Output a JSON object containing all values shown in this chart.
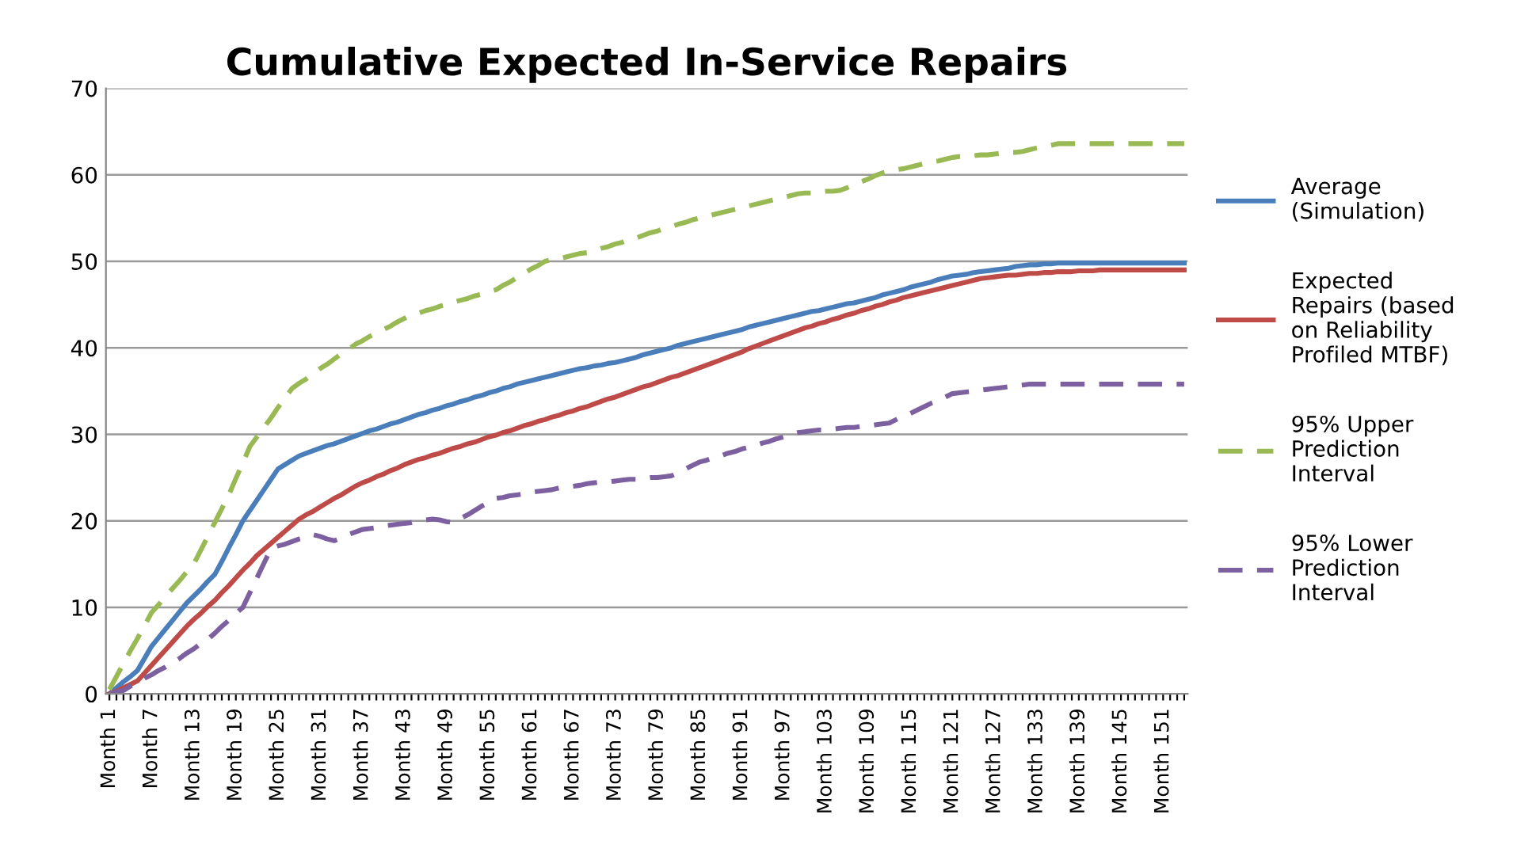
{
  "chart_data": {
    "type": "line",
    "title": "Cumulative Expected In-Service Repairs",
    "categories": [
      "Month 1",
      null,
      null,
      null,
      null,
      null,
      "Month 7",
      null,
      null,
      null,
      null,
      null,
      "Month 13",
      null,
      null,
      null,
      null,
      null,
      "Month 19",
      null,
      null,
      null,
      null,
      null,
      "Month 25",
      null,
      null,
      null,
      null,
      null,
      "Month 31",
      null,
      null,
      null,
      null,
      null,
      "Month 37",
      null,
      null,
      null,
      null,
      null,
      "Month 43",
      null,
      null,
      null,
      null,
      null,
      "Month 49",
      null,
      null,
      null,
      null,
      null,
      "Month 55",
      null,
      null,
      null,
      null,
      null,
      "Month 61",
      null,
      null,
      null,
      null,
      null,
      "Month 67",
      null,
      null,
      null,
      null,
      null,
      "Month 73",
      null,
      null,
      null,
      null,
      null,
      "Month 79",
      null,
      null,
      null,
      null,
      null,
      "Month 85",
      null,
      null,
      null,
      null,
      null,
      "Month 91",
      null,
      null,
      null,
      null,
      null,
      "Month 97",
      null,
      null,
      null,
      null,
      null,
      "Month 103",
      null,
      null,
      null,
      null,
      null,
      "Month 109",
      null,
      null,
      null,
      null,
      null,
      "Month 115",
      null,
      null,
      null,
      null,
      null,
      "Month 121",
      null,
      null,
      null,
      null,
      null,
      "Month 127",
      null,
      null,
      null,
      null,
      null,
      "Month 133",
      null,
      null,
      null,
      null,
      null,
      "Month 139",
      null,
      null,
      null,
      null,
      null,
      "Month 145",
      null,
      null,
      null,
      null,
      null,
      "Month 151",
      null,
      null,
      null
    ],
    "series": [
      {
        "name": "Average\n(Simulation)",
        "color": "#4a7ebb",
        "line_style": "solid",
        "values": [
          0,
          0.7,
          1.4,
          2.0,
          2.7,
          4.1,
          5.5,
          6.5,
          7.5,
          8.5,
          9.5,
          10.5,
          11.3,
          12.1,
          13.0,
          13.8,
          15.3,
          16.9,
          18.4,
          20.0,
          21.2,
          22.4,
          23.6,
          24.8,
          26.0,
          26.5,
          27.0,
          27.5,
          27.8,
          28.1,
          28.4,
          28.7,
          28.9,
          29.2,
          29.5,
          29.8,
          30.1,
          30.4,
          30.6,
          30.9,
          31.2,
          31.4,
          31.7,
          32.0,
          32.3,
          32.5,
          32.8,
          33.0,
          33.3,
          33.5,
          33.8,
          34.0,
          34.3,
          34.5,
          34.8,
          35.0,
          35.3,
          35.5,
          35.8,
          36.0,
          36.2,
          36.4,
          36.6,
          36.8,
          37.0,
          37.2,
          37.4,
          37.6,
          37.7,
          37.9,
          38.0,
          38.2,
          38.3,
          38.5,
          38.7,
          38.9,
          39.2,
          39.4,
          39.6,
          39.8,
          40.0,
          40.3,
          40.5,
          40.7,
          40.9,
          41.1,
          41.3,
          41.5,
          41.7,
          41.9,
          42.1,
          42.4,
          42.6,
          42.8,
          43.0,
          43.2,
          43.4,
          43.6,
          43.8,
          44.0,
          44.2,
          44.3,
          44.5,
          44.7,
          44.9,
          45.1,
          45.2,
          45.4,
          45.6,
          45.8,
          46.1,
          46.3,
          46.5,
          46.7,
          47.0,
          47.2,
          47.4,
          47.6,
          47.9,
          48.1,
          48.3,
          48.4,
          48.5,
          48.7,
          48.8,
          48.9,
          49.0,
          49.1,
          49.2,
          49.4,
          49.5,
          49.6,
          49.6,
          49.7,
          49.7,
          49.8,
          49.8,
          49.8,
          49.8,
          49.8,
          49.8,
          49.8,
          49.8,
          49.8,
          49.8,
          49.8,
          49.8,
          49.8,
          49.8,
          49.8,
          49.8,
          49.8,
          49.8,
          49.8
        ]
      },
      {
        "name": "Expected\nRepairs (based\non Reliability\nProfiled MTBF)",
        "color": "#be4b48",
        "line_style": "solid",
        "values": [
          0,
          0.3,
          0.7,
          1.1,
          1.5,
          2.4,
          3.3,
          4.2,
          5.1,
          6.0,
          6.9,
          7.8,
          8.6,
          9.3,
          10.1,
          10.8,
          11.7,
          12.5,
          13.4,
          14.3,
          15.1,
          16.0,
          16.7,
          17.4,
          18.1,
          18.8,
          19.5,
          20.2,
          20.7,
          21.1,
          21.6,
          22.1,
          22.6,
          23.0,
          23.5,
          24.0,
          24.4,
          24.7,
          25.1,
          25.4,
          25.8,
          26.1,
          26.5,
          26.8,
          27.1,
          27.3,
          27.6,
          27.8,
          28.1,
          28.4,
          28.6,
          28.9,
          29.1,
          29.4,
          29.7,
          29.9,
          30.2,
          30.4,
          30.7,
          31.0,
          31.2,
          31.5,
          31.7,
          32.0,
          32.2,
          32.5,
          32.7,
          33.0,
          33.2,
          33.5,
          33.8,
          34.1,
          34.3,
          34.6,
          34.9,
          35.2,
          35.5,
          35.7,
          36.0,
          36.3,
          36.6,
          36.8,
          37.1,
          37.4,
          37.7,
          38.0,
          38.3,
          38.6,
          38.9,
          39.2,
          39.5,
          39.9,
          40.2,
          40.5,
          40.8,
          41.1,
          41.4,
          41.7,
          42.0,
          42.3,
          42.5,
          42.8,
          43.0,
          43.3,
          43.5,
          43.8,
          44.0,
          44.3,
          44.5,
          44.8,
          45.0,
          45.3,
          45.5,
          45.8,
          46.0,
          46.2,
          46.4,
          46.6,
          46.8,
          47.0,
          47.2,
          47.4,
          47.6,
          47.8,
          48.0,
          48.1,
          48.2,
          48.3,
          48.4,
          48.4,
          48.5,
          48.6,
          48.6,
          48.7,
          48.7,
          48.8,
          48.8,
          48.8,
          48.9,
          48.9,
          48.9,
          49.0,
          49.0,
          49.0,
          49.0,
          49.0,
          49.0,
          49.0,
          49.0,
          49.0,
          49.0,
          49.0,
          49.0,
          49.0
        ]
      },
      {
        "name": "95% Upper\nPrediction\nInterval",
        "color": "#98b954",
        "line_style": "dashed",
        "values": [
          0.5,
          2.0,
          3.5,
          5.0,
          6.4,
          7.9,
          9.4,
          10.3,
          11.3,
          12.2,
          13.1,
          14.1,
          15.0,
          16.6,
          18.2,
          19.8,
          21.4,
          23.0,
          24.9,
          26.7,
          28.6,
          29.7,
          30.8,
          31.9,
          33.1,
          34.2,
          35.3,
          35.9,
          36.4,
          37.0,
          37.6,
          38.1,
          38.7,
          39.3,
          39.8,
          40.4,
          40.8,
          41.3,
          41.7,
          42.1,
          42.5,
          43.0,
          43.4,
          43.8,
          44.0,
          44.3,
          44.5,
          44.8,
          45.0,
          45.3,
          45.5,
          45.7,
          46.0,
          46.2,
          46.5,
          46.7,
          47.2,
          47.6,
          48.1,
          48.6,
          49.1,
          49.5,
          50.0,
          50.2,
          50.3,
          50.5,
          50.7,
          50.9,
          51.0,
          51.2,
          51.5,
          51.7,
          52.0,
          52.2,
          52.5,
          52.7,
          53.0,
          53.3,
          53.5,
          53.8,
          54.0,
          54.3,
          54.5,
          54.8,
          55.0,
          55.2,
          55.4,
          55.6,
          55.8,
          56.0,
          56.2,
          56.4,
          56.6,
          56.8,
          57.0,
          57.2,
          57.4,
          57.6,
          57.8,
          57.9,
          57.9,
          58.0,
          58.1,
          58.1,
          58.2,
          58.5,
          58.9,
          59.2,
          59.5,
          59.9,
          60.2,
          60.4,
          60.6,
          60.7,
          60.9,
          61.1,
          61.3,
          61.5,
          61.6,
          61.8,
          62.0,
          62.1,
          62.1,
          62.2,
          62.3,
          62.3,
          62.4,
          62.5,
          62.6,
          62.6,
          62.7,
          62.9,
          63.1,
          63.2,
          63.4,
          63.6,
          63.6,
          63.6,
          63.6,
          63.6,
          63.6,
          63.6,
          63.6,
          63.6,
          63.6,
          63.6,
          63.6,
          63.6,
          63.6,
          63.6,
          63.6,
          63.6,
          63.6,
          63.6
        ]
      },
      {
        "name": "95% Lower\nPrediction\nInterval",
        "color": "#7d60a0",
        "line_style": "dashed",
        "values": [
          0,
          0.2,
          0.4,
          0.9,
          1.3,
          1.8,
          2.2,
          2.7,
          3.1,
          3.6,
          4.1,
          4.7,
          5.2,
          5.8,
          6.3,
          7.0,
          7.8,
          8.5,
          9.3,
          10.0,
          11.7,
          13.4,
          15.1,
          16.8,
          17.1,
          17.3,
          17.6,
          17.9,
          18.1,
          18.4,
          18.2,
          17.9,
          17.7,
          18.0,
          18.4,
          18.7,
          19.0,
          19.1,
          19.2,
          19.4,
          19.5,
          19.6,
          19.7,
          19.8,
          20.0,
          20.1,
          20.2,
          20.1,
          19.9,
          19.8,
          20.3,
          20.7,
          21.2,
          21.7,
          22.1,
          22.6,
          22.7,
          22.9,
          23.0,
          23.1,
          23.3,
          23.4,
          23.5,
          23.6,
          23.8,
          23.9,
          24.0,
          24.1,
          24.3,
          24.4,
          24.5,
          24.5,
          24.6,
          24.7,
          24.8,
          24.8,
          24.9,
          25.0,
          25.0,
          25.1,
          25.2,
          25.6,
          26.0,
          26.4,
          26.8,
          27.0,
          27.3,
          27.5,
          27.8,
          28.0,
          28.3,
          28.5,
          28.7,
          29.0,
          29.2,
          29.5,
          29.7,
          30.0,
          30.2,
          30.3,
          30.4,
          30.5,
          30.5,
          30.6,
          30.7,
          30.8,
          30.8,
          30.9,
          31.0,
          31.1,
          31.2,
          31.3,
          31.7,
          32.1,
          32.4,
          32.8,
          33.2,
          33.6,
          33.9,
          34.3,
          34.7,
          34.8,
          34.9,
          35.0,
          35.1,
          35.2,
          35.3,
          35.4,
          35.5,
          35.6,
          35.7,
          35.8,
          35.8,
          35.8,
          35.8,
          35.8,
          35.8,
          35.8,
          35.8,
          35.8,
          35.8,
          35.8,
          35.8,
          35.8,
          35.8,
          35.8,
          35.8,
          35.8,
          35.8,
          35.8,
          35.8,
          35.8,
          35.8,
          35.8
        ]
      }
    ],
    "ylim": [
      0,
      70
    ],
    "yticks": [
      0,
      10,
      20,
      30,
      40,
      50,
      60,
      70
    ],
    "grid": "y",
    "legend": "right",
    "marker": "none"
  }
}
